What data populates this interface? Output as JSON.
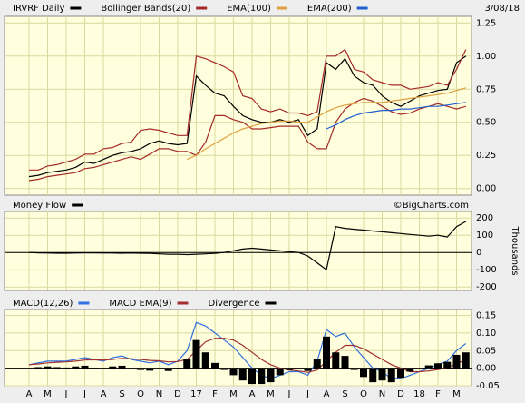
{
  "chart_data": [
    {
      "type": "line",
      "date": "3/08/18",
      "watermark": "©BigCharts.com",
      "ylim": [
        -0.05,
        1.3
      ],
      "yticks": [
        {
          "value": 0,
          "label": "0.00"
        },
        {
          "value": 0.25,
          "label": "0.25"
        },
        {
          "value": 0.5,
          "label": "0.50"
        },
        {
          "value": 0.75,
          "label": "0.75"
        },
        {
          "value": 1,
          "label": "1.00"
        },
        {
          "value": 1.25,
          "label": "1.25"
        }
      ],
      "series": [
        {
          "name": "IRVRF Daily",
          "color": "#000000",
          "values": [
            0.09,
            0.1,
            0.12,
            0.13,
            0.14,
            0.16,
            0.2,
            0.19,
            0.22,
            0.25,
            0.27,
            0.28,
            0.3,
            0.34,
            0.36,
            0.34,
            0.33,
            0.34,
            0.85,
            0.78,
            0.72,
            0.7,
            0.62,
            0.55,
            0.52,
            0.5,
            0.5,
            0.52,
            0.5,
            0.52,
            0.4,
            0.45,
            0.95,
            0.9,
            0.98,
            0.85,
            0.8,
            0.78,
            0.7,
            0.65,
            0.62,
            0.66,
            0.7,
            0.72,
            0.74,
            0.75,
            0.95,
            1.0
          ]
        },
        {
          "name": "Bollinger Bands(20)",
          "color": "#a52a2a",
          "upper": [
            0.14,
            0.14,
            0.17,
            0.18,
            0.2,
            0.22,
            0.26,
            0.26,
            0.3,
            0.31,
            0.34,
            0.35,
            0.44,
            0.45,
            0.44,
            0.42,
            0.4,
            0.4,
            1.0,
            0.98,
            0.95,
            0.92,
            0.88,
            0.7,
            0.68,
            0.6,
            0.58,
            0.6,
            0.57,
            0.57,
            0.55,
            0.58,
            1.0,
            1.0,
            1.05,
            0.9,
            0.88,
            0.82,
            0.8,
            0.78,
            0.78,
            0.75,
            0.76,
            0.77,
            0.8,
            0.78,
            0.9,
            1.05
          ],
          "lower": [
            0.06,
            0.07,
            0.09,
            0.1,
            0.11,
            0.12,
            0.15,
            0.16,
            0.18,
            0.2,
            0.22,
            0.24,
            0.22,
            0.26,
            0.3,
            0.3,
            0.28,
            0.28,
            0.25,
            0.35,
            0.55,
            0.55,
            0.52,
            0.5,
            0.45,
            0.45,
            0.46,
            0.47,
            0.47,
            0.47,
            0.35,
            0.3,
            0.3,
            0.5,
            0.6,
            0.65,
            0.68,
            0.66,
            0.62,
            0.58,
            0.56,
            0.57,
            0.6,
            0.62,
            0.64,
            0.62,
            0.6,
            0.62
          ]
        },
        {
          "name": "EMA(100)",
          "color": "#e0a040",
          "values": [
            null,
            null,
            null,
            null,
            null,
            null,
            null,
            null,
            null,
            null,
            null,
            null,
            null,
            null,
            null,
            null,
            null,
            0.22,
            0.25,
            0.3,
            0.34,
            0.38,
            0.42,
            0.45,
            0.47,
            0.49,
            0.5,
            0.51,
            0.51,
            0.5,
            0.5,
            0.54,
            0.58,
            0.61,
            0.63,
            0.64,
            0.65,
            0.65,
            0.65,
            0.66,
            0.67,
            0.68,
            0.69,
            0.7,
            0.71,
            0.72,
            0.74,
            0.76
          ]
        },
        {
          "name": "EMA(200)",
          "color": "#2060d0",
          "values": [
            null,
            null,
            null,
            null,
            null,
            null,
            null,
            null,
            null,
            null,
            null,
            null,
            null,
            null,
            null,
            null,
            null,
            null,
            null,
            null,
            null,
            null,
            null,
            null,
            null,
            null,
            null,
            null,
            null,
            null,
            null,
            null,
            0.45,
            0.48,
            0.52,
            0.55,
            0.57,
            0.58,
            0.59,
            0.59,
            0.6,
            0.6,
            0.61,
            0.62,
            0.62,
            0.63,
            0.64,
            0.65
          ]
        }
      ]
    },
    {
      "type": "line",
      "axis_label": "Thousands",
      "ylim": [
        -220,
        238
      ],
      "yticks": [
        200,
        100,
        0,
        -100,
        -200
      ],
      "series": [
        {
          "name": "Money Flow",
          "color": "#000000",
          "values": [
            0,
            -2,
            -3,
            -4,
            -4,
            -3,
            -2,
            -2,
            -3,
            -3,
            -4,
            -3,
            -4,
            -5,
            -8,
            -10,
            -10,
            -12,
            -10,
            -8,
            -5,
            0,
            10,
            20,
            25,
            20,
            15,
            10,
            5,
            0,
            -20,
            -60,
            -100,
            150,
            140,
            135,
            130,
            125,
            120,
            115,
            110,
            105,
            100,
            95,
            100,
            90,
            150,
            180
          ]
        }
      ]
    },
    {
      "type": "line",
      "ylim": [
        -0.05,
        0.167
      ],
      "yticks": [
        {
          "value": 0.15,
          "label": "0.15"
        },
        {
          "value": 0.1,
          "label": "0.10"
        },
        {
          "value": 0.05,
          "label": "0.05"
        },
        {
          "value": 0,
          "label": "0.00"
        },
        {
          "value": -0.05,
          "label": "-0.05"
        }
      ],
      "categories": [
        "A",
        null,
        "M",
        null,
        "J",
        null,
        "J",
        null,
        "A",
        null,
        "S",
        null,
        "O",
        null,
        "N",
        null,
        "D",
        null,
        "17",
        null,
        "F",
        null,
        "M",
        null,
        "A",
        null,
        "M",
        null,
        "J",
        null,
        "J",
        null,
        "A",
        null,
        "S",
        null,
        "O",
        null,
        "N",
        null,
        "D",
        null,
        "18",
        null,
        "F",
        null,
        "M",
        null
      ],
      "series": [
        {
          "name": "MACD(12,26)",
          "color": "#3070e0",
          "values": [
            0.01,
            0.015,
            0.02,
            0.02,
            0.02,
            0.025,
            0.03,
            0.025,
            0.02,
            0.03,
            0.035,
            0.025,
            0.02,
            0.015,
            0.02,
            0.01,
            0.02,
            0.05,
            0.13,
            0.12,
            0.1,
            0.08,
            0.06,
            0.03,
            0.0,
            -0.02,
            -0.03,
            -0.02,
            -0.01,
            -0.01,
            -0.02,
            0.02,
            0.11,
            0.09,
            0.1,
            0.06,
            0.03,
            0.0,
            -0.01,
            -0.03,
            -0.03,
            -0.02,
            -0.01,
            0.0,
            0.01,
            0.02,
            0.05,
            0.07
          ]
        },
        {
          "name": "MACD EMA(9)",
          "color": "#a03030",
          "values": [
            0.01,
            0.012,
            0.015,
            0.017,
            0.018,
            0.02,
            0.023,
            0.024,
            0.023,
            0.025,
            0.028,
            0.027,
            0.025,
            0.022,
            0.021,
            0.018,
            0.019,
            0.025,
            0.05,
            0.075,
            0.085,
            0.085,
            0.08,
            0.065,
            0.045,
            0.025,
            0.01,
            0.0,
            -0.005,
            -0.008,
            -0.012,
            -0.005,
            0.02,
            0.045,
            0.065,
            0.065,
            0.055,
            0.04,
            0.025,
            0.01,
            0.0,
            -0.01,
            -0.01,
            -0.008,
            -0.004,
            0.002,
            0.012,
            0.025
          ]
        },
        {
          "name": "Divergence",
          "type": "bar",
          "color": "#000000",
          "values": [
            0,
            0.003,
            0.005,
            0.003,
            0.002,
            0.005,
            0.007,
            0.001,
            -0.003,
            0.005,
            0.007,
            -0.002,
            -0.005,
            -0.007,
            -0.001,
            -0.008,
            0.001,
            0.025,
            0.08,
            0.045,
            0.015,
            -0.005,
            -0.02,
            -0.035,
            -0.045,
            -0.045,
            -0.04,
            -0.02,
            -0.005,
            -0.002,
            -0.008,
            0.025,
            0.09,
            0.045,
            0.035,
            -0.005,
            -0.025,
            -0.04,
            -0.035,
            -0.04,
            -0.03,
            -0.01,
            0,
            0.008,
            0.014,
            0.018,
            0.038,
            0.045
          ]
        }
      ]
    }
  ]
}
